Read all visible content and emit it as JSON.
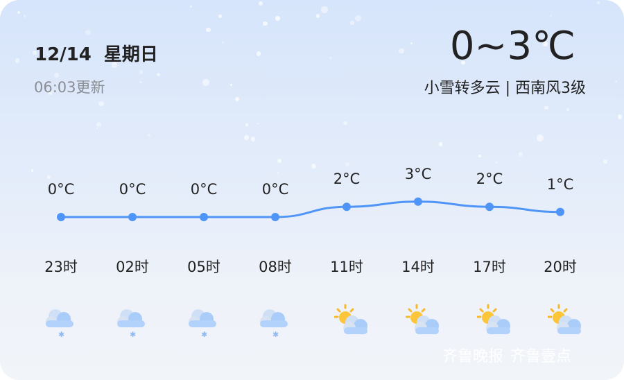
{
  "header": {
    "date": "12/14",
    "weekday": "星期日",
    "updated": "06:03更新",
    "temp_range": "0~3℃",
    "description": "小雪转多云 | 西南风3级"
  },
  "forecast": [
    {
      "time": "23时",
      "temp": 0,
      "temp_label": "0°C",
      "icon": "light-snow-icon"
    },
    {
      "time": "02时",
      "temp": 0,
      "temp_label": "0°C",
      "icon": "light-snow-icon"
    },
    {
      "time": "05时",
      "temp": 0,
      "temp_label": "0°C",
      "icon": "light-snow-icon"
    },
    {
      "time": "08时",
      "temp": 0,
      "temp_label": "0°C",
      "icon": "light-snow-icon"
    },
    {
      "time": "11时",
      "temp": 2,
      "temp_label": "2°C",
      "icon": "partly-cloudy-icon"
    },
    {
      "time": "14时",
      "temp": 3,
      "temp_label": "3°C",
      "icon": "partly-cloudy-icon"
    },
    {
      "time": "17时",
      "temp": 2,
      "temp_label": "2°C",
      "icon": "partly-cloudy-icon"
    },
    {
      "time": "20时",
      "temp": 1,
      "temp_label": "1°C",
      "icon": "partly-cloudy-icon"
    }
  ],
  "chart_data": {
    "type": "line",
    "categories": [
      "23时",
      "02时",
      "05时",
      "08时",
      "11时",
      "14时",
      "17时",
      "20时"
    ],
    "values": [
      0,
      0,
      0,
      0,
      2,
      3,
      2,
      1
    ],
    "line_color": "#4f95f7"
  },
  "watermark": {
    "brand1": "齐鲁晚报",
    "brand2": "齐鲁壹点"
  }
}
